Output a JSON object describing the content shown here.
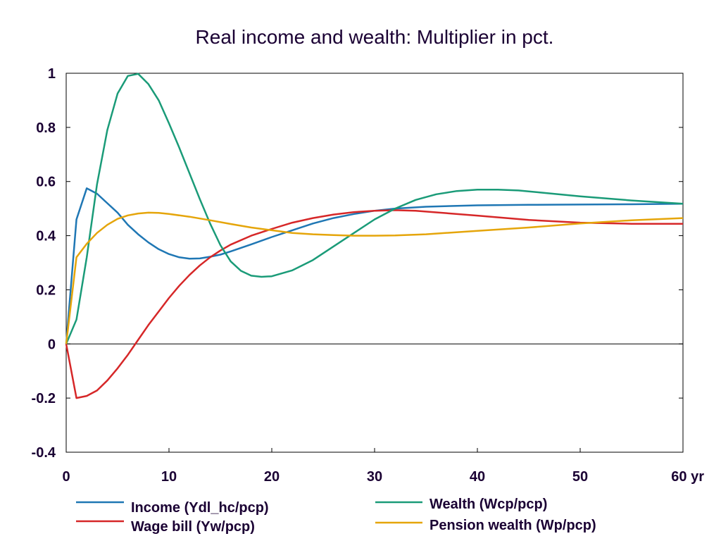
{
  "chart_data": {
    "type": "line",
    "title": "Real income and wealth: Multiplier in pct.",
    "xlabel": "",
    "ylabel": "",
    "xlim": [
      0,
      60
    ],
    "ylim": [
      -0.4,
      1
    ],
    "x_ticks": [
      0,
      10,
      20,
      30,
      40,
      50,
      60
    ],
    "x_tick_labels": [
      "0",
      "10",
      "20",
      "30",
      "40",
      "50",
      "60 yr"
    ],
    "y_ticks": [
      -0.4,
      -0.2,
      0,
      0.2,
      0.4,
      0.6,
      0.8,
      1
    ],
    "y_tick_labels": [
      "-0.4",
      "-0.2",
      "0",
      "0.2",
      "0.4",
      "0.6",
      "0.8",
      "1"
    ],
    "grid": false,
    "zero_line": true,
    "legend_position": "bottom",
    "series": [
      {
        "name": "Income (Ydl_hc/pcp)",
        "color": "#1f77b4",
        "points": [
          [
            0,
            0
          ],
          [
            1,
            0.46
          ],
          [
            2,
            0.575
          ],
          [
            3,
            0.555
          ],
          [
            4,
            0.52
          ],
          [
            5,
            0.485
          ],
          [
            6,
            0.44
          ],
          [
            7,
            0.405
          ],
          [
            8,
            0.375
          ],
          [
            9,
            0.35
          ],
          [
            10,
            0.332
          ],
          [
            11,
            0.32
          ],
          [
            12,
            0.315
          ],
          [
            13,
            0.316
          ],
          [
            14,
            0.322
          ],
          [
            15,
            0.33
          ],
          [
            16,
            0.342
          ],
          [
            17,
            0.355
          ],
          [
            18,
            0.368
          ],
          [
            20,
            0.395
          ],
          [
            22,
            0.42
          ],
          [
            24,
            0.445
          ],
          [
            26,
            0.465
          ],
          [
            28,
            0.48
          ],
          [
            30,
            0.492
          ],
          [
            32,
            0.5
          ],
          [
            35,
            0.507
          ],
          [
            40,
            0.512
          ],
          [
            45,
            0.514
          ],
          [
            50,
            0.515
          ],
          [
            55,
            0.516
          ],
          [
            60,
            0.518
          ]
        ]
      },
      {
        "name": "Wage bill (Yw/pcp)",
        "color": "#d62728",
        "points": [
          [
            0,
            0
          ],
          [
            1,
            -0.2
          ],
          [
            2,
            -0.192
          ],
          [
            3,
            -0.172
          ],
          [
            4,
            -0.135
          ],
          [
            5,
            -0.09
          ],
          [
            6,
            -0.04
          ],
          [
            7,
            0.015
          ],
          [
            8,
            0.07
          ],
          [
            9,
            0.12
          ],
          [
            10,
            0.17
          ],
          [
            11,
            0.215
          ],
          [
            12,
            0.255
          ],
          [
            13,
            0.29
          ],
          [
            14,
            0.32
          ],
          [
            15,
            0.345
          ],
          [
            16,
            0.367
          ],
          [
            18,
            0.4
          ],
          [
            20,
            0.425
          ],
          [
            22,
            0.448
          ],
          [
            24,
            0.465
          ],
          [
            26,
            0.478
          ],
          [
            28,
            0.487
          ],
          [
            30,
            0.492
          ],
          [
            32,
            0.494
          ],
          [
            34,
            0.492
          ],
          [
            36,
            0.486
          ],
          [
            40,
            0.474
          ],
          [
            45,
            0.458
          ],
          [
            50,
            0.448
          ],
          [
            55,
            0.444
          ],
          [
            60,
            0.444
          ]
        ]
      },
      {
        "name": "Wealth (Wcp/pcp)",
        "color": "#1a9b78",
        "points": [
          [
            0,
            0
          ],
          [
            1,
            0.09
          ],
          [
            2,
            0.32
          ],
          [
            3,
            0.59
          ],
          [
            4,
            0.79
          ],
          [
            5,
            0.925
          ],
          [
            6,
            0.99
          ],
          [
            7,
            0.998
          ],
          [
            8,
            0.96
          ],
          [
            9,
            0.9
          ],
          [
            10,
            0.815
          ],
          [
            11,
            0.725
          ],
          [
            12,
            0.63
          ],
          [
            13,
            0.535
          ],
          [
            14,
            0.445
          ],
          [
            15,
            0.365
          ],
          [
            16,
            0.305
          ],
          [
            17,
            0.27
          ],
          [
            18,
            0.252
          ],
          [
            19,
            0.248
          ],
          [
            20,
            0.25
          ],
          [
            22,
            0.272
          ],
          [
            24,
            0.31
          ],
          [
            26,
            0.36
          ],
          [
            28,
            0.41
          ],
          [
            30,
            0.46
          ],
          [
            32,
            0.5
          ],
          [
            34,
            0.532
          ],
          [
            36,
            0.553
          ],
          [
            38,
            0.565
          ],
          [
            40,
            0.57
          ],
          [
            42,
            0.57
          ],
          [
            44,
            0.567
          ],
          [
            46,
            0.56
          ],
          [
            50,
            0.545
          ],
          [
            55,
            0.53
          ],
          [
            60,
            0.518
          ]
        ]
      },
      {
        "name": "Pension wealth (Wp/pcp)",
        "color": "#e5a50a",
        "points": [
          [
            0,
            0
          ],
          [
            1,
            0.32
          ],
          [
            2,
            0.37
          ],
          [
            3,
            0.41
          ],
          [
            4,
            0.44
          ],
          [
            5,
            0.462
          ],
          [
            6,
            0.475
          ],
          [
            7,
            0.482
          ],
          [
            8,
            0.485
          ],
          [
            9,
            0.484
          ],
          [
            10,
            0.48
          ],
          [
            12,
            0.47
          ],
          [
            14,
            0.457
          ],
          [
            16,
            0.443
          ],
          [
            18,
            0.43
          ],
          [
            20,
            0.42
          ],
          [
            22,
            0.41
          ],
          [
            24,
            0.405
          ],
          [
            26,
            0.402
          ],
          [
            28,
            0.4
          ],
          [
            30,
            0.4
          ],
          [
            32,
            0.401
          ],
          [
            35,
            0.405
          ],
          [
            40,
            0.418
          ],
          [
            45,
            0.43
          ],
          [
            50,
            0.445
          ],
          [
            55,
            0.457
          ],
          [
            60,
            0.465
          ]
        ]
      }
    ]
  }
}
